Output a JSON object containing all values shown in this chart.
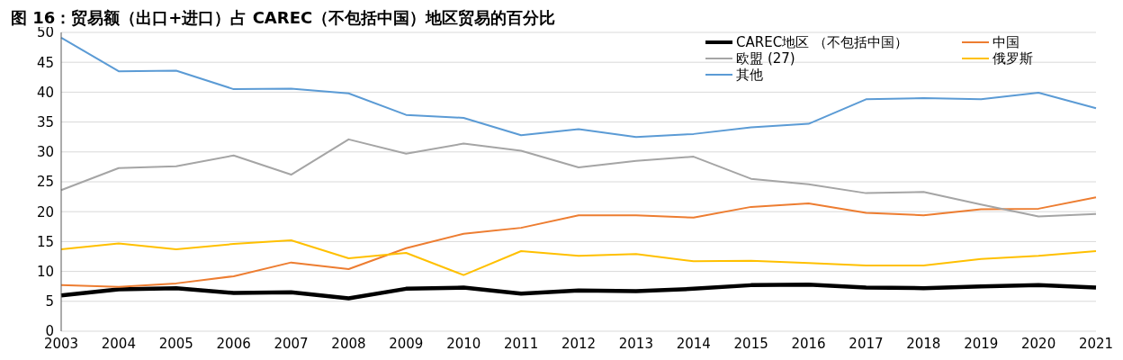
{
  "chart_data": {
    "type": "line",
    "title": "图 16：贸易额（出口+进口）占 CAREC（不包括中国）地区贸易的百分比",
    "categories": [
      "2003",
      "2004",
      "2005",
      "2006",
      "2007",
      "2008",
      "2009",
      "2010",
      "2011",
      "2012",
      "2013",
      "2014",
      "2015",
      "2016",
      "2017",
      "2018",
      "2019",
      "2020",
      "2021"
    ],
    "series": [
      {
        "name": "CAREC地区 （不包括中国）",
        "color": "#000000",
        "values": [
          6.0,
          7.0,
          7.2,
          6.4,
          6.5,
          5.5,
          7.1,
          7.3,
          6.3,
          6.8,
          6.7,
          7.1,
          7.7,
          7.8,
          7.3,
          7.2,
          7.5,
          7.7,
          7.3
        ]
      },
      {
        "name": "中国",
        "color": "#ed7d31",
        "values": [
          7.7,
          7.4,
          8.0,
          9.2,
          11.5,
          10.4,
          13.9,
          16.3,
          17.3,
          19.4,
          19.4,
          19.0,
          20.8,
          21.4,
          19.8,
          19.4,
          20.4,
          20.5,
          22.4
        ]
      },
      {
        "name": "欧盟 (27)",
        "color": "#a5a5a5",
        "values": [
          23.6,
          27.3,
          27.6,
          29.4,
          26.2,
          32.1,
          29.7,
          31.4,
          30.2,
          27.4,
          28.5,
          29.2,
          25.5,
          24.6,
          23.1,
          23.3,
          21.2,
          19.2,
          19.6
        ]
      },
      {
        "name": "俄罗斯",
        "color": "#ffc000",
        "values": [
          13.7,
          14.7,
          13.7,
          14.6,
          15.2,
          12.2,
          13.1,
          9.4,
          13.4,
          12.6,
          12.9,
          11.7,
          11.8,
          11.4,
          11.0,
          11.0,
          12.1,
          12.6,
          13.4
        ]
      },
      {
        "name": "其他",
        "color": "#5b9bd5",
        "values": [
          49.1,
          43.5,
          43.6,
          40.5,
          40.6,
          39.8,
          36.2,
          35.7,
          32.8,
          33.8,
          32.5,
          33.0,
          34.1,
          34.7,
          38.8,
          39.0,
          38.8,
          39.9,
          37.3
        ]
      }
    ],
    "ylim": [
      0,
      50
    ],
    "yticks": [
      0,
      5,
      10,
      15,
      20,
      25,
      30,
      35,
      40,
      45,
      50
    ],
    "grid": "y",
    "legend": "top right",
    "marker": "none",
    "line_style": "solid"
  }
}
